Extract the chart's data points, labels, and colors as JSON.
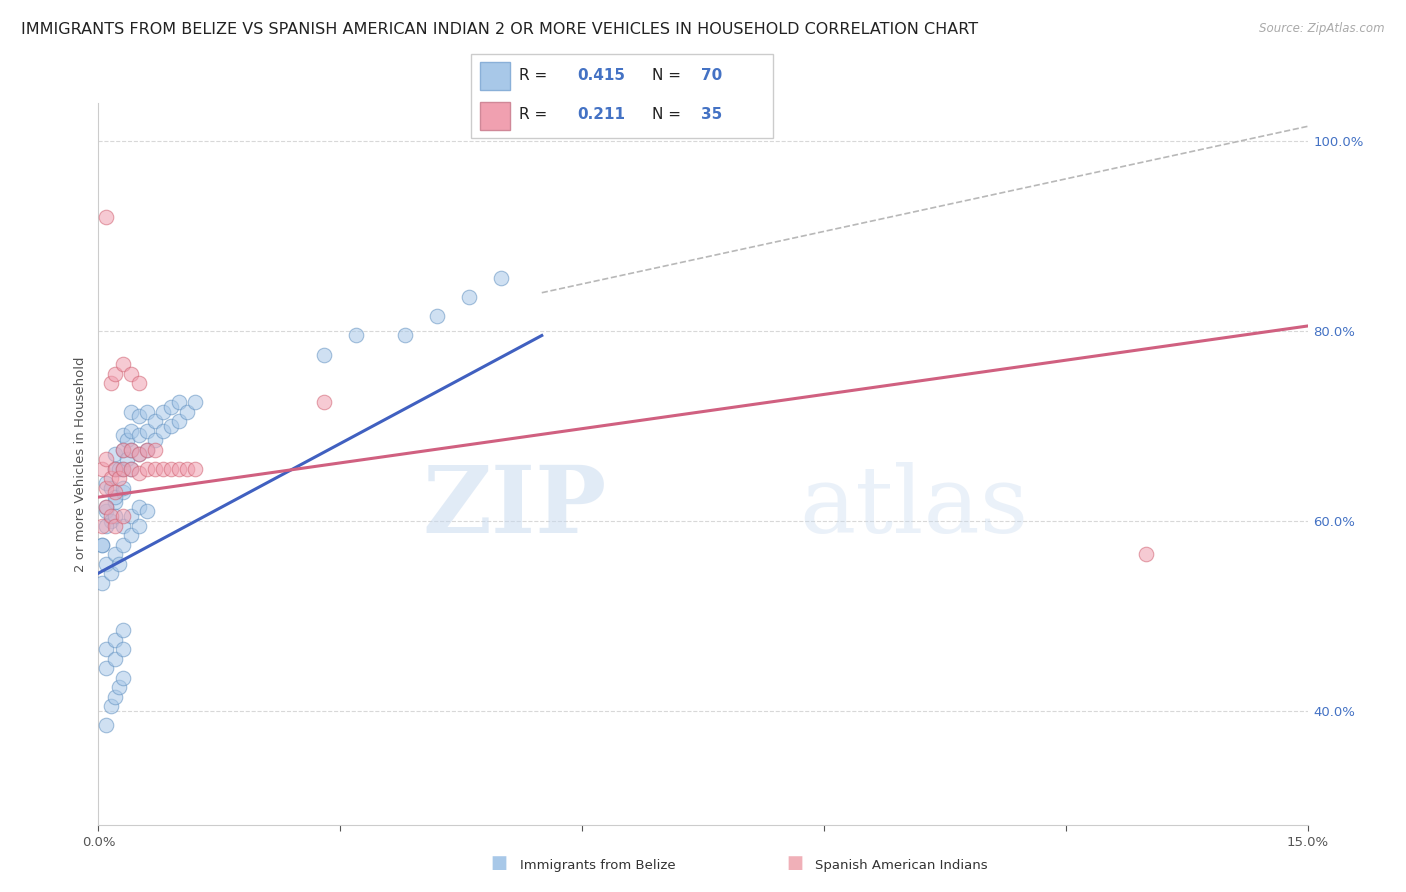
{
  "title": "IMMIGRANTS FROM BELIZE VS SPANISH AMERICAN INDIAN 2 OR MORE VEHICLES IN HOUSEHOLD CORRELATION CHART",
  "source": "Source: ZipAtlas.com",
  "ylabel": "2 or more Vehicles in Household",
  "x_min": 0.0,
  "x_max": 0.15,
  "y_min": 0.28,
  "y_max": 1.04,
  "right_y_ticks": [
    0.4,
    0.6,
    0.8,
    1.0
  ],
  "right_y_labels": [
    "40.0%",
    "60.0%",
    "80.0%",
    "100.0%"
  ],
  "x_ticks": [
    0.0,
    0.03,
    0.06,
    0.09,
    0.12,
    0.15
  ],
  "x_tick_labels": [
    "0.0%",
    "",
    "",
    "",
    "",
    "15.0%"
  ],
  "blue_scatter_x": [
    0.0005,
    0.001,
    0.001,
    0.0015,
    0.0015,
    0.002,
    0.002,
    0.002,
    0.0025,
    0.003,
    0.003,
    0.003,
    0.003,
    0.0035,
    0.0035,
    0.004,
    0.004,
    0.004,
    0.004,
    0.005,
    0.005,
    0.005,
    0.006,
    0.006,
    0.006,
    0.007,
    0.007,
    0.008,
    0.008,
    0.009,
    0.009,
    0.01,
    0.01,
    0.011,
    0.012,
    0.0005,
    0.001,
    0.0015,
    0.002,
    0.0025,
    0.003,
    0.003,
    0.004,
    0.004,
    0.005,
    0.005,
    0.006,
    0.001,
    0.001,
    0.002,
    0.002,
    0.003,
    0.003,
    0.0005,
    0.001,
    0.001,
    0.002,
    0.002,
    0.003,
    0.038,
    0.042,
    0.046,
    0.05,
    0.028,
    0.032,
    0.001,
    0.0015,
    0.002,
    0.0025,
    0.003
  ],
  "blue_scatter_y": [
    0.575,
    0.61,
    0.64,
    0.6,
    0.635,
    0.62,
    0.655,
    0.67,
    0.655,
    0.63,
    0.655,
    0.675,
    0.69,
    0.665,
    0.685,
    0.655,
    0.675,
    0.695,
    0.715,
    0.67,
    0.69,
    0.71,
    0.675,
    0.695,
    0.715,
    0.685,
    0.705,
    0.695,
    0.715,
    0.7,
    0.72,
    0.705,
    0.725,
    0.715,
    0.725,
    0.535,
    0.555,
    0.545,
    0.565,
    0.555,
    0.575,
    0.595,
    0.585,
    0.605,
    0.595,
    0.615,
    0.61,
    0.445,
    0.465,
    0.455,
    0.475,
    0.465,
    0.485,
    0.575,
    0.595,
    0.615,
    0.605,
    0.625,
    0.635,
    0.795,
    0.815,
    0.835,
    0.855,
    0.775,
    0.795,
    0.385,
    0.405,
    0.415,
    0.425,
    0.435
  ],
  "pink_scatter_x": [
    0.0005,
    0.001,
    0.001,
    0.0015,
    0.002,
    0.002,
    0.0025,
    0.003,
    0.003,
    0.004,
    0.004,
    0.005,
    0.005,
    0.006,
    0.006,
    0.007,
    0.007,
    0.008,
    0.009,
    0.01,
    0.011,
    0.012,
    0.0005,
    0.001,
    0.0015,
    0.002,
    0.003,
    0.0015,
    0.002,
    0.003,
    0.004,
    0.005,
    0.028,
    0.13,
    0.001
  ],
  "pink_scatter_y": [
    0.655,
    0.635,
    0.665,
    0.645,
    0.63,
    0.655,
    0.645,
    0.655,
    0.675,
    0.655,
    0.675,
    0.65,
    0.67,
    0.655,
    0.675,
    0.655,
    0.675,
    0.655,
    0.655,
    0.655,
    0.655,
    0.655,
    0.595,
    0.615,
    0.605,
    0.595,
    0.605,
    0.745,
    0.755,
    0.765,
    0.755,
    0.745,
    0.725,
    0.565,
    0.92
  ],
  "blue_line_x": [
    0.0,
    0.055
  ],
  "blue_line_y": [
    0.545,
    0.795
  ],
  "pink_line_x": [
    0.0,
    0.15
  ],
  "pink_line_y": [
    0.625,
    0.805
  ],
  "ref_line_x": [
    0.055,
    0.15
  ],
  "ref_line_y": [
    0.84,
    1.015
  ],
  "watermark_zip": "ZIP",
  "watermark_atlas": "atlas",
  "bg_color": "#ffffff",
  "blue_dot_color": "#a8c8e8",
  "pink_dot_color": "#f0a0b0",
  "blue_dot_edge": "#6090c0",
  "pink_dot_edge": "#d06070",
  "blue_line_color": "#4060c0",
  "pink_line_color": "#d06080",
  "ref_line_color": "#b8b8b8",
  "grid_color": "#d8d8d8",
  "right_axis_color": "#4472c4",
  "title_color": "#222222",
  "title_fontsize": 11.5,
  "axis_label_fontsize": 9.5,
  "tick_fontsize": 9.5,
  "scatter_size": 110,
  "scatter_alpha": 0.55,
  "legend_blue_patch": "#a8c8e8",
  "legend_pink_patch": "#f0a0b0",
  "bottom_legend_blue": "#a8c8e8",
  "bottom_legend_pink": "#f0b0b8"
}
